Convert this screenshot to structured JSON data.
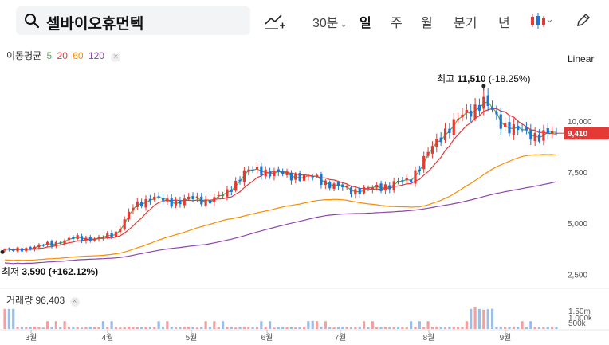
{
  "toolbar": {
    "stock_name": "셀바이오휴먼텍",
    "interval": "30분",
    "periods": [
      "일",
      "주",
      "월",
      "분기",
      "년"
    ],
    "active_period": "일",
    "chevron": "⌄"
  },
  "icons": {
    "search": "search-icon",
    "indicator": "indicator-add-icon",
    "candle": "candlestick-icon",
    "draw": "pencil-icon"
  },
  "ma_legend": {
    "title": "이동평균",
    "periods": [
      {
        "label": "5",
        "color": "#4caf50"
      },
      {
        "label": "20",
        "color": "#e53935"
      },
      {
        "label": "60",
        "color": "#fb8c00"
      },
      {
        "label": "120",
        "color": "#8e44ad"
      }
    ],
    "close": "×"
  },
  "scale_type": "Linear",
  "volume_legend": {
    "title": "거래량",
    "value": "96,403",
    "close": "×"
  },
  "chart_data": {
    "type": "candlestick",
    "title": "셀바이오휴먼텍",
    "price_axis": {
      "ylim": [
        2200,
        12500
      ],
      "ticks": [
        2500,
        5000,
        7500,
        10000
      ],
      "tick_labels": [
        "2,500",
        "5,000",
        "7,500",
        "10,000"
      ]
    },
    "current_price": {
      "value": 9410,
      "label": "9,410",
      "color": "#e53935"
    },
    "high": {
      "value": 11510,
      "label_prefix": "최고",
      "label_value": "11,510",
      "label_change": "(-18.25%)"
    },
    "low": {
      "value": 3590,
      "label_prefix": "최저",
      "label_value": "3,590",
      "label_change": "(+162.12%)"
    },
    "x_months": [
      "3월",
      "4월",
      "5월",
      "6월",
      "7월",
      "8월",
      "9월"
    ],
    "volume_axis": {
      "tick_labels": [
        "1.50m",
        "1,000k",
        "500k"
      ]
    },
    "key_closes": [
      3590,
      3750,
      3900,
      4100,
      4300,
      4200,
      4500,
      5800,
      6300,
      6000,
      6200,
      6100,
      6400,
      7500,
      7600,
      7400,
      7300,
      7200,
      6800,
      6600,
      6700,
      6900,
      7100,
      8400,
      9600,
      10300,
      11000,
      9900,
      9500,
      9300,
      9410
    ],
    "colors": {
      "up": "#e53935",
      "down": "#1e73d8"
    }
  }
}
